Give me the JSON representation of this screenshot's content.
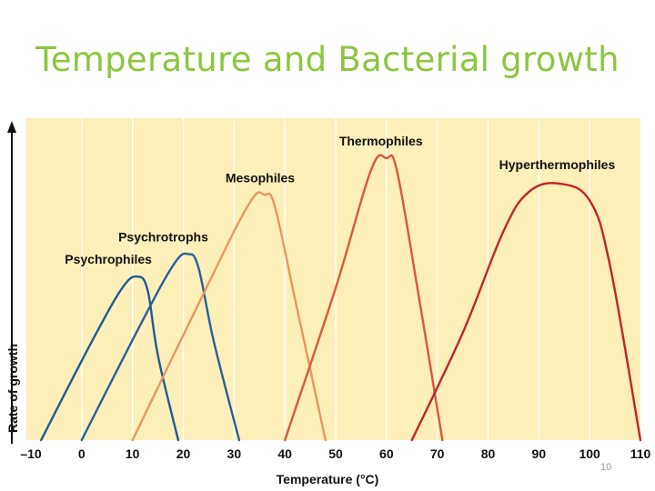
{
  "slide": {
    "title": "Temperature and Bacterial growth",
    "page_number": "10"
  },
  "chart_data": {
    "type": "line",
    "title": "Temperature and Bacterial growth",
    "xlabel": "Temperature (°C)",
    "ylabel": "Rate of growth",
    "xlim": [
      -10,
      110
    ],
    "ylim": [
      0,
      1.0
    ],
    "x_ticks": [
      -10,
      0,
      10,
      20,
      30,
      40,
      50,
      60,
      70,
      80,
      90,
      100,
      110
    ],
    "y_ticks": [],
    "grid": "vertical",
    "background_color": "#fcefb8",
    "legend": "none",
    "series": [
      {
        "name": "Psychrophiles",
        "color": "#1f5c96",
        "x": [
          -8,
          2,
          8,
          11,
          13,
          15,
          19
        ],
        "y": [
          0,
          0.35,
          0.54,
          0.58,
          0.53,
          0.3,
          0
        ]
      },
      {
        "name": "Psychrotrophs",
        "color": "#2a5f9e",
        "x": [
          0,
          11,
          18,
          21,
          23,
          26,
          31
        ],
        "y": [
          0,
          0.39,
          0.62,
          0.66,
          0.61,
          0.35,
          0
        ]
      },
      {
        "name": "Mesophiles",
        "color": "#e8965f",
        "x": [
          10,
          24,
          33,
          36,
          38,
          42,
          48
        ],
        "y": [
          0,
          0.52,
          0.84,
          0.87,
          0.83,
          0.5,
          0
        ]
      },
      {
        "name": "Thermophiles",
        "color": "#d9583b",
        "x": [
          40,
          50,
          57,
          60,
          62,
          66,
          71
        ],
        "y": [
          0,
          0.54,
          0.96,
          1.0,
          0.96,
          0.55,
          0
        ]
      },
      {
        "name": "Hyperthermophiles",
        "color": "#c0242b",
        "x": [
          65,
          75,
          83,
          88,
          94,
          100,
          104,
          110
        ],
        "y": [
          0,
          0.38,
          0.74,
          0.88,
          0.91,
          0.85,
          0.62,
          0
        ]
      }
    ]
  }
}
